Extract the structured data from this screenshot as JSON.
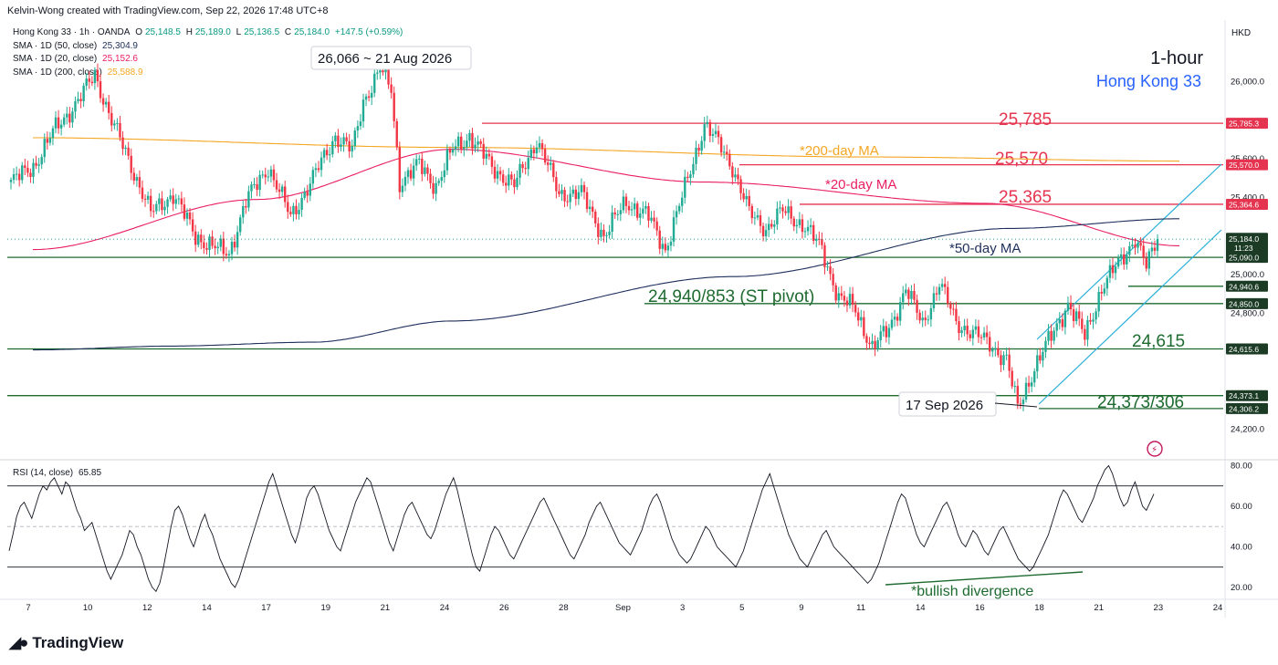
{
  "header": {
    "creator": "Kelvin-Wong created with TradingView.com, Sep 22, 2026 17:48 UTC+8"
  },
  "legend": {
    "symbol": "Hong Kong 33 · 1h · OANDA",
    "open_label": "O",
    "open": "25,148.5",
    "high_label": "H",
    "high": "25,189.0",
    "low_label": "L",
    "low": "25,136.5",
    "close_label": "C",
    "close": "25,184.0",
    "change": "+147.5 (+0.59%)",
    "sma50_label": "SMA · 1D (50, close)",
    "sma50_value": "25,304.9",
    "sma20_label": "SMA · 1D (20, close)",
    "sma20_value": "25,152.6",
    "sma200_label": "SMA · 1D (200, close)",
    "sma200_value": "25,588.9"
  },
  "currency": "HKD",
  "branding": "TradingView",
  "colors": {
    "up": "#22ab94",
    "down": "#f23645",
    "sma50": "#1e2f5c",
    "sma20": "#e91e63",
    "sma200": "#f5a623",
    "resistance": "#e5344f",
    "support": "#1e6b30",
    "channel": "#2bb0d9",
    "title_blue": "#2962ff"
  },
  "chart_data": [
    {
      "type": "candlestick",
      "title": "1-hour",
      "subtitle": "Hong Kong 33",
      "ylim": [
        24050,
        26320
      ],
      "y_ticks": [
        "26,000.0",
        "25,600.0",
        "25,400.0",
        "25,000.0",
        "24,800.0",
        "24,200.0"
      ],
      "x_ticks": [
        "7",
        "10",
        "12",
        "14",
        "17",
        "19",
        "21",
        "24",
        "26",
        "28",
        "Sep",
        "3",
        "5",
        "9",
        "11",
        "14",
        "16",
        "18",
        "21",
        "23",
        "24"
      ],
      "price_path": [
        [
          0,
          25480
        ],
        [
          8,
          25560
        ],
        [
          16,
          25760
        ],
        [
          24,
          25900
        ],
        [
          30,
          26040
        ],
        [
          36,
          25800
        ],
        [
          42,
          25600
        ],
        [
          50,
          25320
        ],
        [
          58,
          25420
        ],
        [
          66,
          25200
        ],
        [
          74,
          25130
        ],
        [
          78,
          25110
        ],
        [
          84,
          25380
        ],
        [
          92,
          25560
        ],
        [
          100,
          25300
        ],
        [
          108,
          25500
        ],
        [
          116,
          25720
        ],
        [
          122,
          25640
        ],
        [
          126,
          25900
        ],
        [
          132,
          26066
        ],
        [
          136,
          25960
        ],
        [
          139,
          25480
        ],
        [
          146,
          25570
        ],
        [
          152,
          25460
        ],
        [
          158,
          25650
        ],
        [
          164,
          25720
        ],
        [
          172,
          25560
        ],
        [
          180,
          25460
        ],
        [
          188,
          25700
        ],
        [
          196,
          25420
        ],
        [
          204,
          25420
        ],
        [
          212,
          25200
        ],
        [
          220,
          25380
        ],
        [
          228,
          25300
        ],
        [
          234,
          25130
        ],
        [
          240,
          25400
        ],
        [
          248,
          25780
        ],
        [
          254,
          25660
        ],
        [
          258,
          25560
        ],
        [
          264,
          25320
        ],
        [
          270,
          25240
        ],
        [
          276,
          25330
        ],
        [
          284,
          25250
        ],
        [
          290,
          25130
        ],
        [
          296,
          24880
        ],
        [
          302,
          24820
        ],
        [
          308,
          24620
        ],
        [
          314,
          24720
        ],
        [
          320,
          24930
        ],
        [
          326,
          24740
        ],
        [
          332,
          24960
        ],
        [
          338,
          24750
        ],
        [
          344,
          24700
        ],
        [
          350,
          24640
        ],
        [
          356,
          24560
        ],
        [
          360,
          24306
        ],
        [
          366,
          24520
        ],
        [
          372,
          24680
        ],
        [
          378,
          24850
        ],
        [
          384,
          24680
        ],
        [
          390,
          24930
        ],
        [
          398,
          25100
        ],
        [
          402,
          25190
        ],
        [
          406,
          25040
        ],
        [
          410,
          25184
        ]
      ],
      "series": [
        {
          "name": "*200-day MA",
          "values": [
            [
              0,
              25710
            ],
            [
              150,
              25660
            ],
            [
              300,
              25610
            ],
            [
              410,
              25589
            ]
          ]
        },
        {
          "name": "*20-day MA",
          "values": [
            [
              0,
              25130
            ],
            [
              80,
              25390
            ],
            [
              150,
              25650
            ],
            [
              240,
              25480
            ],
            [
              340,
              25370
            ],
            [
              410,
              25150
            ]
          ]
        },
        {
          "name": "*50-day MA",
          "values": [
            [
              0,
              24610
            ],
            [
              50,
              24630
            ],
            [
              100,
              24650
            ],
            [
              150,
              24760
            ],
            [
              250,
              24990
            ],
            [
              350,
              25240
            ],
            [
              410,
              25290
            ]
          ]
        }
      ],
      "levels": [
        {
          "label": "25,785",
          "tag": "25,785.3",
          "value": 25785,
          "kind": "resistance"
        },
        {
          "label": "25,570",
          "tag": "25,570.0",
          "value": 25570,
          "kind": "resistance"
        },
        {
          "label": "25,365",
          "tag": "25,364.6",
          "value": 25365,
          "kind": "resistance"
        },
        {
          "label": "",
          "tag": "25,090.0",
          "value": 25090,
          "kind": "support"
        },
        {
          "label": "",
          "tag": "24,940.6",
          "value": 24940,
          "kind": "support"
        },
        {
          "label": "24,940/853 (ST pivot)",
          "tag": "24,850.0",
          "value": 24850,
          "kind": "support"
        },
        {
          "label": "24,615",
          "tag": "24,615.6",
          "value": 24615,
          "kind": "support"
        },
        {
          "label": "",
          "tag": "24,373.1",
          "value": 24373,
          "kind": "support"
        },
        {
          "label": "24,373/306",
          "tag": "24,306.2",
          "value": 24306,
          "kind": "support"
        }
      ],
      "last_price": {
        "value": "25,184.0",
        "countdown": "11:23"
      },
      "annotations": [
        "26,066 ~ 21 Aug 2026",
        "17 Sep 2026"
      ]
    },
    {
      "type": "line",
      "title": "RSI (14, close)",
      "current": "65.85",
      "ylim": [
        15,
        82
      ],
      "y_ticks": [
        "80.00",
        "60.00",
        "40.00",
        "20.00"
      ],
      "bands": [
        70,
        50,
        30
      ],
      "annotation": "*bullish divergence",
      "values": [
        38,
        46,
        55,
        60,
        62,
        58,
        54,
        60,
        66,
        70,
        68,
        72,
        74,
        70,
        66,
        72,
        70,
        64,
        58,
        54,
        48,
        50,
        52,
        46,
        40,
        34,
        28,
        24,
        28,
        32,
        36,
        42,
        48,
        46,
        40,
        36,
        30,
        24,
        20,
        18,
        22,
        30,
        40,
        50,
        58,
        60,
        56,
        50,
        44,
        40,
        46,
        52,
        56,
        50,
        46,
        40,
        34,
        30,
        26,
        22,
        20,
        24,
        30,
        36,
        42,
        48,
        54,
        60,
        66,
        72,
        76,
        70,
        64,
        58,
        52,
        46,
        42,
        48,
        56,
        64,
        68,
        70,
        66,
        60,
        54,
        48,
        44,
        40,
        38,
        44,
        50,
        56,
        62,
        66,
        70,
        74,
        72,
        66,
        60,
        54,
        48,
        42,
        38,
        44,
        50,
        56,
        60,
        62,
        58,
        54,
        50,
        46,
        44,
        48,
        54,
        60,
        66,
        70,
        74,
        68,
        60,
        52,
        44,
        36,
        30,
        28,
        34,
        40,
        46,
        50,
        48,
        44,
        40,
        36,
        34,
        38,
        42,
        46,
        50,
        54,
        58,
        62,
        64,
        60,
        56,
        52,
        48,
        44,
        40,
        36,
        34,
        38,
        42,
        46,
        52,
        56,
        60,
        62,
        58,
        54,
        50,
        46,
        42,
        40,
        38,
        36,
        40,
        44,
        48,
        54,
        60,
        64,
        66,
        62,
        56,
        50,
        44,
        40,
        36,
        34,
        32,
        34,
        38,
        42,
        46,
        50,
        48,
        44,
        40,
        38,
        36,
        34,
        32,
        30,
        34,
        38,
        44,
        50,
        56,
        62,
        68,
        72,
        76,
        70,
        64,
        58,
        52,
        46,
        42,
        38,
        34,
        32,
        30,
        34,
        38,
        42,
        46,
        48,
        44,
        40,
        38,
        36,
        34,
        32,
        30,
        28,
        26,
        24,
        22,
        24,
        28,
        32,
        38,
        44,
        50,
        56,
        62,
        66,
        64,
        58,
        52,
        46,
        42,
        40,
        44,
        48,
        52,
        56,
        60,
        62,
        58,
        52,
        46,
        42,
        40,
        44,
        48,
        46,
        42,
        38,
        36,
        40,
        44,
        48,
        50,
        46,
        42,
        38,
        34,
        32,
        30,
        28,
        30,
        34,
        38,
        42,
        46,
        52,
        58,
        64,
        68,
        66,
        62,
        58,
        54,
        52,
        56,
        60,
        64,
        70,
        74,
        78,
        80,
        76,
        70,
        64,
        60,
        62,
        68,
        72,
        66,
        60,
        58,
        62,
        66
      ]
    }
  ]
}
